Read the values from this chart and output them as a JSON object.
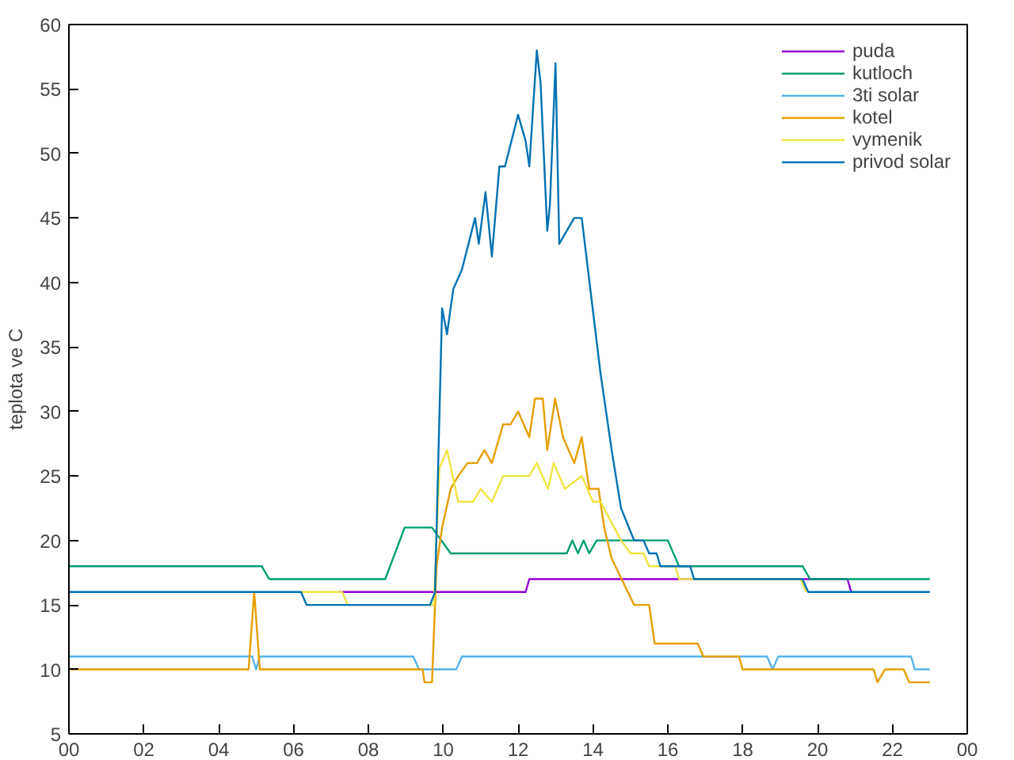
{
  "chart_data": {
    "type": "line",
    "ylabel": "teplota ve C",
    "xlim": [
      0,
      24
    ],
    "ylim": [
      5,
      60
    ],
    "xticks": [
      {
        "value": 0,
        "label": "00"
      },
      {
        "value": 2,
        "label": "02"
      },
      {
        "value": 4,
        "label": "04"
      },
      {
        "value": 6,
        "label": "06"
      },
      {
        "value": 8,
        "label": "08"
      },
      {
        "value": 10,
        "label": "10"
      },
      {
        "value": 12,
        "label": "12"
      },
      {
        "value": 14,
        "label": "14"
      },
      {
        "value": 16,
        "label": "16"
      },
      {
        "value": 18,
        "label": "18"
      },
      {
        "value": 20,
        "label": "20"
      },
      {
        "value": 22,
        "label": "22"
      },
      {
        "value": 24,
        "label": "00"
      }
    ],
    "yticks": [
      5,
      10,
      15,
      20,
      25,
      30,
      35,
      40,
      45,
      50,
      55,
      60
    ],
    "grid": false,
    "legend": "top right",
    "series": [
      {
        "name": "puda",
        "color": "#9400d3",
        "x": [
          7.2,
          12.2,
          12.3,
          20.8,
          20.9
        ],
        "values": [
          16,
          16,
          17,
          17,
          16
        ]
      },
      {
        "name": "kutloch",
        "color": "#009e73",
        "x": [
          0,
          5.15,
          5.35,
          8.45,
          8.97,
          9.7,
          10.2,
          13.3,
          13.45,
          13.6,
          13.75,
          13.9,
          14.1,
          16.0,
          16.3,
          19.6,
          19.8,
          23
        ],
        "values": [
          18,
          18,
          17,
          17,
          21,
          21,
          19,
          19,
          20,
          19,
          20,
          19,
          20,
          20,
          18,
          18,
          17,
          17
        ]
      },
      {
        "name": "3ti solar",
        "color": "#56b4e9",
        "x": [
          0,
          4.9,
          5.0,
          5.1,
          9.2,
          9.35,
          10.35,
          10.5,
          18.65,
          18.8,
          18.95,
          22.5,
          22.6,
          23
        ],
        "values": [
          11,
          11,
          10,
          11,
          11,
          10,
          10,
          11,
          11,
          10,
          11,
          11,
          10,
          10
        ]
      },
      {
        "name": "kotel",
        "color": "#e69f00",
        "x": [
          0,
          4.8,
          4.95,
          5.1,
          9.45,
          9.5,
          9.7,
          9.82,
          9.97,
          10.2,
          10.4,
          10.65,
          10.9,
          11.1,
          11.3,
          11.6,
          11.8,
          12.0,
          12.3,
          12.45,
          12.66,
          12.78,
          12.99,
          13.2,
          13.5,
          13.7,
          13.9,
          14.15,
          14.3,
          14.5,
          15.1,
          15.5,
          15.65,
          16.8,
          16.95,
          17.9,
          18.0,
          21.5,
          21.6,
          21.8,
          22.3,
          22.45,
          23
        ],
        "values": [
          10,
          10,
          16,
          10,
          10,
          9,
          9,
          18,
          21,
          24,
          25,
          26,
          26,
          27,
          26,
          29,
          29,
          30,
          28,
          31,
          31,
          27,
          31,
          28,
          26,
          28,
          24,
          24,
          21,
          18.6,
          15,
          15,
          12,
          12,
          11,
          11,
          10,
          10,
          9,
          10,
          10,
          9,
          9
        ]
      },
      {
        "name": "vymenik",
        "color": "#f0e442",
        "x": [
          6.2,
          7.3,
          7.45,
          9.75,
          9.9,
          10.1,
          10.4,
          10.8,
          11.0,
          11.3,
          11.6,
          12.3,
          12.5,
          12.8,
          12.95,
          13.25,
          13.7,
          14.0,
          14.2,
          14.75,
          15.0,
          15.35,
          15.5,
          16.2,
          16.3,
          19.55,
          19.7
        ],
        "values": [
          16,
          16,
          15,
          15,
          25.6,
          27,
          23,
          23,
          24,
          23,
          25,
          25,
          26,
          24,
          26,
          24,
          25,
          23,
          23,
          20,
          19,
          19,
          18,
          18,
          17,
          17,
          16
        ]
      },
      {
        "name": "privod solar",
        "color": "#0072b2",
        "x": [
          0,
          6.2,
          6.35,
          9.65,
          9.78,
          9.97,
          10.1,
          10.27,
          10.5,
          10.85,
          10.95,
          11.13,
          11.3,
          11.5,
          11.65,
          12.0,
          12.2,
          12.3,
          12.5,
          12.6,
          12.78,
          12.85,
          13.0,
          13.1,
          13.5,
          13.7,
          13.95,
          14.2,
          14.5,
          14.75,
          15.1,
          15.35,
          15.5,
          15.7,
          15.8,
          16.6,
          16.7,
          19.6,
          19.75,
          23
        ],
        "values": [
          16,
          16,
          15,
          15,
          16,
          38,
          36,
          39.5,
          41,
          45,
          43,
          47,
          42,
          49,
          49,
          53,
          51,
          49,
          58,
          55.5,
          44,
          46,
          57,
          43,
          45,
          45,
          39,
          33,
          27,
          22.5,
          20,
          20,
          19,
          19,
          18,
          18,
          17,
          17,
          16,
          16
        ]
      }
    ]
  }
}
